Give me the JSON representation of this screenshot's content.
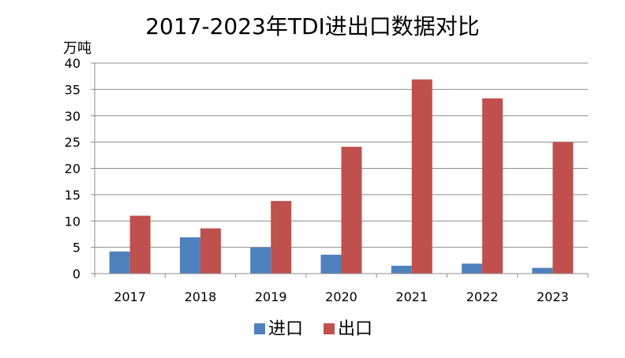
{
  "chart_data": {
    "type": "bar",
    "title": "2017-2023年TDI进出口数据对比",
    "ylabel": "万吨",
    "xlabel": "",
    "categories": [
      "2017",
      "2018",
      "2019",
      "2020",
      "2021",
      "2022",
      "2023"
    ],
    "ylim": [
      0,
      40
    ],
    "yticks": [
      0,
      5,
      10,
      15,
      20,
      25,
      30,
      35,
      40
    ],
    "grid": true,
    "legend_position": "bottom",
    "series": [
      {
        "name": "进口",
        "color": "#4F81BD",
        "values": [
          4.2,
          6.9,
          5.0,
          3.6,
          1.5,
          1.9,
          1.1
        ]
      },
      {
        "name": "出口",
        "color": "#C0504D",
        "values": [
          11.0,
          8.6,
          13.8,
          24.1,
          36.9,
          33.3,
          25.0
        ]
      }
    ]
  }
}
